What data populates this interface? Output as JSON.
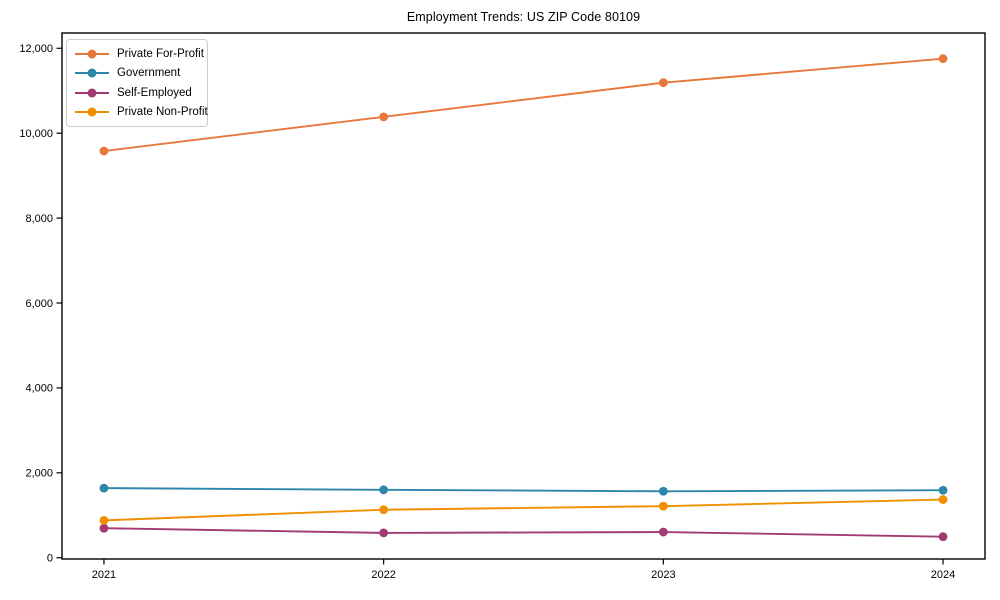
{
  "chart_data": {
    "type": "line",
    "title": "Employment Trends: US ZIP Code 80109",
    "xlabel": "",
    "ylabel": "",
    "x": [
      2021,
      2022,
      2023,
      2024
    ],
    "x_tick_labels": [
      "2021",
      "2022",
      "2023",
      "2024"
    ],
    "y_ticks": [
      0,
      2000,
      4000,
      6000,
      8000,
      10000,
      12000
    ],
    "y_tick_labels": [
      "0",
      "2,000",
      "4,000",
      "6,000",
      "8,000",
      "10,000",
      "12,000"
    ],
    "xlim": [
      2020.85,
      2024.15
    ],
    "ylim": [
      -30,
      12360
    ],
    "grid": false,
    "legend_position": "upper left",
    "marker": "o",
    "series": [
      {
        "name": "Private For-Profit",
        "color": "#e8773b",
        "values": [
          9580,
          10385,
          11190,
          11755
        ]
      },
      {
        "name": "Government",
        "color": "#2e86ab",
        "values": [
          1640,
          1600,
          1565,
          1590
        ]
      },
      {
        "name": "Self-Employed",
        "color": "#a23b72",
        "values": [
          695,
          585,
          605,
          495
        ]
      },
      {
        "name": "Private Non-Profit",
        "color": "#f18f01",
        "values": [
          880,
          1130,
          1215,
          1370
        ]
      }
    ]
  }
}
